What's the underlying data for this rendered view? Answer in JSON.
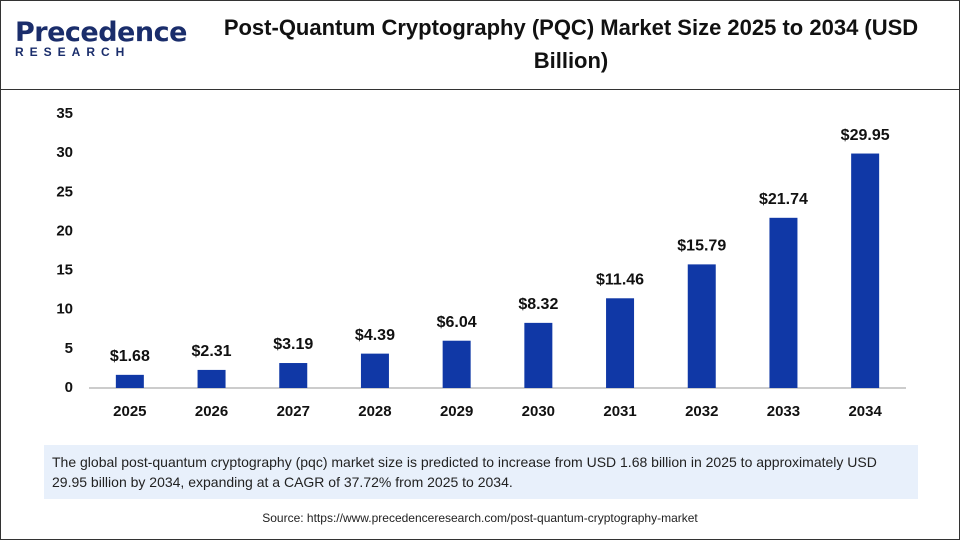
{
  "logo": {
    "name": "Precedence",
    "tagline": "RESEARCH"
  },
  "chart_data": {
    "type": "bar",
    "title": "Post-Quantum Cryptography (PQC) Market Size 2025 to 2034 (USD Billion)",
    "categories": [
      "2025",
      "2026",
      "2027",
      "2028",
      "2029",
      "2030",
      "2031",
      "2032",
      "2033",
      "2034"
    ],
    "values": [
      1.68,
      2.31,
      3.19,
      4.39,
      6.04,
      8.32,
      11.46,
      15.79,
      21.74,
      29.95
    ],
    "value_labels": [
      "$1.68",
      "$2.31",
      "$3.19",
      "$4.39",
      "$6.04",
      "$8.32",
      "$11.46",
      "$15.79",
      "$21.74",
      "$29.95"
    ],
    "color": "#1038a6",
    "ylim": [
      0,
      35
    ],
    "yticks": [
      0,
      5,
      10,
      15,
      20,
      25,
      30,
      35
    ],
    "grid": false
  },
  "description": "The global post-quantum cryptography (pqc) market size is predicted to increase from USD 1.68 billion in 2025 to approximately USD 29.95 billion by 2034, expanding at a CAGR of 37.72% from 2025 to 2034.",
  "source": "Source: https://www.precedenceresearch.com/post-quantum-cryptography-market"
}
